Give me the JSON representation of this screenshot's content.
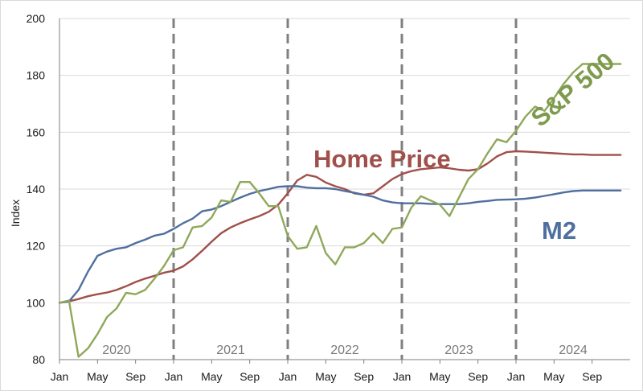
{
  "chart_data": {
    "type": "line",
    "ylabel": "Index",
    "ylim": [
      80,
      200
    ],
    "yticks": [
      80,
      100,
      120,
      140,
      160,
      180,
      200
    ],
    "xlim": [
      0,
      60
    ],
    "xticks": [
      {
        "month": 0,
        "label": "Jan"
      },
      {
        "month": 4,
        "label": "May"
      },
      {
        "month": 8,
        "label": "Sep"
      },
      {
        "month": 12,
        "label": "Jan"
      },
      {
        "month": 16,
        "label": "May"
      },
      {
        "month": 20,
        "label": "Sep"
      },
      {
        "month": 24,
        "label": "Jan"
      },
      {
        "month": 28,
        "label": "May"
      },
      {
        "month": 32,
        "label": "Sep"
      },
      {
        "month": 36,
        "label": "Jan"
      },
      {
        "month": 40,
        "label": "May"
      },
      {
        "month": 44,
        "label": "Sep"
      },
      {
        "month": 48,
        "label": "Jan"
      },
      {
        "month": 52,
        "label": "May"
      },
      {
        "month": 56,
        "label": "Sep"
      }
    ],
    "year_dividers": [
      12,
      24,
      36,
      48
    ],
    "year_labels": [
      {
        "center_month": 6,
        "label": "2020"
      },
      {
        "center_month": 18,
        "label": "2021"
      },
      {
        "center_month": 30,
        "label": "2022"
      },
      {
        "center_month": 42,
        "label": "2023"
      },
      {
        "center_month": 54,
        "label": "2024"
      }
    ],
    "grid": "horizontal",
    "series": [
      {
        "name": "Home Price",
        "color": "#a0504a",
        "label_color": "#a0504a",
        "x": [
          0,
          1,
          2,
          3,
          4,
          5,
          6,
          7,
          8,
          9,
          10,
          11,
          12,
          13,
          14,
          15,
          16,
          17,
          18,
          19,
          20,
          21,
          22,
          23,
          24,
          25,
          26,
          27,
          28,
          29,
          30,
          31,
          32,
          33,
          34,
          35,
          36,
          37,
          38,
          39,
          40,
          41,
          42,
          43,
          44,
          45,
          46,
          47,
          48,
          49,
          50,
          51,
          52,
          53,
          54,
          55,
          56,
          57,
          58,
          59
        ],
        "values": [
          100,
          100.5,
          101.3,
          102.3,
          103,
          103.6,
          104.5,
          105.8,
          107.3,
          108.5,
          109.5,
          110.6,
          111.3,
          112.8,
          115.3,
          118.3,
          121.5,
          124.5,
          126.5,
          128,
          129.3,
          130.5,
          132,
          134.5,
          138.5,
          143,
          145,
          144.3,
          142.3,
          141,
          140,
          138.5,
          138,
          138.5,
          141,
          143.5,
          145.3,
          146.3,
          147,
          147.3,
          147.6,
          147.3,
          146.8,
          146.5,
          147,
          149,
          151.5,
          153,
          153.3,
          153.2,
          153,
          152.8,
          152.6,
          152.4,
          152.2,
          152.2,
          152,
          152,
          152,
          152
        ]
      },
      {
        "name": "M2",
        "color": "#4f6f9f",
        "label_color": "#4f6f9f",
        "x": [
          0,
          1,
          2,
          3,
          4,
          5,
          6,
          7,
          8,
          9,
          10,
          11,
          12,
          13,
          14,
          15,
          16,
          17,
          18,
          19,
          20,
          21,
          22,
          23,
          24,
          25,
          26,
          27,
          28,
          29,
          30,
          31,
          32,
          33,
          34,
          35,
          36,
          37,
          38,
          39,
          40,
          41,
          42,
          43,
          44,
          45,
          46,
          47,
          48,
          49,
          50,
          51,
          52,
          53,
          54,
          55,
          56,
          57,
          58,
          59
        ],
        "values": [
          100,
          100.5,
          104.5,
          111,
          116.5,
          118,
          119,
          119.5,
          121,
          122.2,
          123.6,
          124.3,
          126,
          128,
          129.6,
          132.2,
          132.8,
          134,
          135.5,
          137,
          138.3,
          139.3,
          140,
          140.8,
          141,
          141,
          140.5,
          140.3,
          140.3,
          140,
          139.3,
          138.7,
          138,
          137.3,
          136,
          135.3,
          135,
          135,
          135,
          134.8,
          134.7,
          134.7,
          134.7,
          135,
          135.5,
          135.8,
          136.2,
          136.3,
          136.4,
          136.6,
          137,
          137.6,
          138.2,
          138.8,
          139.3,
          139.5,
          139.5,
          139.5,
          139.5,
          139.5
        ]
      },
      {
        "name": "S&P 500",
        "color": "#8fa85a",
        "label_color": "#7e9a4c",
        "x": [
          0,
          1,
          2,
          3,
          4,
          5,
          6,
          7,
          8,
          9,
          10,
          11,
          12,
          13,
          14,
          15,
          16,
          17,
          18,
          19,
          20,
          21,
          22,
          23,
          24,
          25,
          26,
          27,
          28,
          29,
          30,
          31,
          32,
          33,
          34,
          35,
          36,
          37,
          38,
          39,
          40,
          41,
          42,
          43,
          44,
          45,
          46,
          47,
          48,
          49,
          50,
          51,
          52,
          53,
          54,
          55,
          56,
          57,
          58,
          59
        ],
        "values": [
          100,
          100.8,
          81,
          84,
          89,
          95,
          98,
          103.5,
          103,
          104.5,
          108.5,
          113,
          118.5,
          119.5,
          126.5,
          127,
          130,
          136,
          135.5,
          142.5,
          142.5,
          138.5,
          134,
          134,
          123.5,
          119,
          119.5,
          127,
          117.5,
          113.5,
          119.5,
          119.5,
          121,
          124.5,
          121,
          126,
          126.5,
          133.5,
          137.5,
          136,
          134.5,
          130.5,
          137,
          143.5,
          147,
          152.5,
          157.5,
          156.5,
          160.5,
          165.5,
          169,
          167.5,
          172,
          177,
          181,
          184,
          184,
          184,
          184,
          184
        ]
      }
    ]
  },
  "labels": {
    "home_price": "Home Price",
    "m2": "M2",
    "sp500": "S&P 500"
  }
}
